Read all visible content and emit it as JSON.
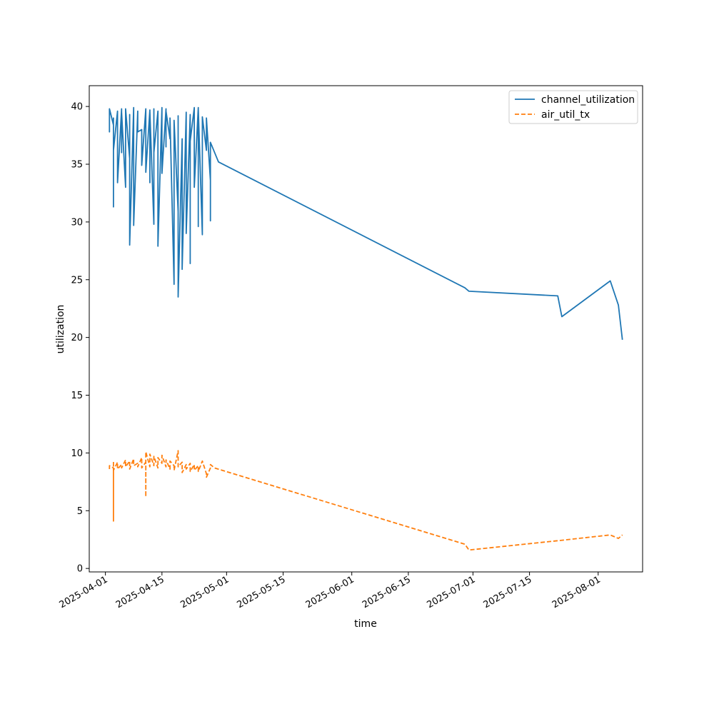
{
  "chart_data": {
    "type": "line",
    "title": "",
    "xlabel": "time",
    "ylabel": "utilization",
    "xlim": [
      "2025-03-28",
      "2025-08-12"
    ],
    "ylim": [
      -0.3,
      41.8
    ],
    "x_ticks": [
      "2025-04-01",
      "2025-04-15",
      "2025-05-01",
      "2025-05-15",
      "2025-06-01",
      "2025-06-15",
      "2025-07-01",
      "2025-07-15",
      "2025-08-01"
    ],
    "y_ticks": [
      0,
      5,
      10,
      15,
      20,
      25,
      30,
      35,
      40
    ],
    "grid": false,
    "legend": "top-right",
    "series": [
      {
        "name": "channel_utilization",
        "color": "#1f77b4",
        "style": "solid",
        "points": [
          [
            "2025-04-02",
            39.5
          ],
          [
            "2025-04-02",
            37.8
          ],
          [
            "2025-04-02",
            39.8
          ],
          [
            "2025-04-03",
            38.4
          ],
          [
            "2025-04-03",
            34.5
          ],
          [
            "2025-04-03",
            39.0
          ],
          [
            "2025-04-03",
            31.3
          ],
          [
            "2025-04-03",
            36.2
          ],
          [
            "2025-04-04",
            39.6
          ],
          [
            "2025-04-04",
            33.4
          ],
          [
            "2025-04-05",
            39.8
          ],
          [
            "2025-04-05",
            36.0
          ],
          [
            "2025-04-05",
            39.5
          ],
          [
            "2025-04-06",
            33.0
          ],
          [
            "2025-04-06",
            39.8
          ],
          [
            "2025-04-07",
            35.5
          ],
          [
            "2025-04-07",
            39.3
          ],
          [
            "2025-04-07",
            28.0
          ],
          [
            "2025-04-08",
            39.9
          ],
          [
            "2025-04-08",
            35.6
          ],
          [
            "2025-04-08",
            39.7
          ],
          [
            "2025-04-08",
            29.7
          ],
          [
            "2025-04-09",
            39.6
          ],
          [
            "2025-04-09",
            37.8
          ],
          [
            "2025-04-10",
            38.0
          ],
          [
            "2025-04-10",
            34.9
          ],
          [
            "2025-04-11",
            39.8
          ],
          [
            "2025-04-11",
            34.3
          ],
          [
            "2025-04-12",
            39.7
          ],
          [
            "2025-04-12",
            33.4
          ],
          [
            "2025-04-12",
            39.6
          ],
          [
            "2025-04-13",
            29.8
          ],
          [
            "2025-04-13",
            39.8
          ],
          [
            "2025-04-13",
            36.0
          ],
          [
            "2025-04-14",
            39.6
          ],
          [
            "2025-04-14",
            27.9
          ],
          [
            "2025-04-15",
            39.9
          ],
          [
            "2025-04-15",
            34.2
          ],
          [
            "2025-04-16",
            39.8
          ],
          [
            "2025-04-16",
            36.5
          ],
          [
            "2025-04-16",
            39.6
          ],
          [
            "2025-04-17",
            37.2
          ],
          [
            "2025-04-17",
            39.0
          ],
          [
            "2025-04-18",
            24.6
          ],
          [
            "2025-04-18",
            38.8
          ],
          [
            "2025-04-19",
            30.9
          ],
          [
            "2025-04-19",
            39.2
          ],
          [
            "2025-04-19",
            23.5
          ],
          [
            "2025-04-20",
            37.2
          ],
          [
            "2025-04-20",
            25.9
          ],
          [
            "2025-04-21",
            39.5
          ],
          [
            "2025-04-21",
            29.0
          ],
          [
            "2025-04-22",
            39.3
          ],
          [
            "2025-04-22",
            26.4
          ],
          [
            "2025-04-22",
            37.0
          ],
          [
            "2025-04-23",
            39.9
          ],
          [
            "2025-04-23",
            33.0
          ],
          [
            "2025-04-24",
            39.9
          ],
          [
            "2025-04-24",
            29.6
          ],
          [
            "2025-04-24",
            39.8
          ],
          [
            "2025-04-25",
            28.9
          ],
          [
            "2025-04-25",
            39.1
          ],
          [
            "2025-04-26",
            36.2
          ],
          [
            "2025-04-26",
            39.0
          ],
          [
            "2025-04-27",
            33.6
          ],
          [
            "2025-04-27",
            30.1
          ],
          [
            "2025-04-27",
            36.9
          ],
          [
            "2025-04-29",
            35.2
          ],
          [
            "2025-06-29",
            24.3
          ],
          [
            "2025-06-30",
            24.0
          ],
          [
            "2025-07-22",
            23.6
          ],
          [
            "2025-07-23",
            21.8
          ],
          [
            "2025-08-04",
            24.9
          ],
          [
            "2025-08-06",
            22.8
          ],
          [
            "2025-08-07",
            19.8
          ]
        ]
      },
      {
        "name": "air_util_tx",
        "color": "#ff7f0e",
        "style": "dashed",
        "points": [
          [
            "2025-04-02",
            8.6
          ],
          [
            "2025-04-02",
            8.9
          ],
          [
            "2025-04-03",
            8.7
          ],
          [
            "2025-04-03",
            4.1
          ],
          [
            "2025-04-03",
            9.3
          ],
          [
            "2025-04-03",
            8.5
          ],
          [
            "2025-04-04",
            9.2
          ],
          [
            "2025-04-04",
            8.6
          ],
          [
            "2025-04-05",
            9.0
          ],
          [
            "2025-04-05",
            8.7
          ],
          [
            "2025-04-06",
            9.4
          ],
          [
            "2025-04-06",
            8.8
          ],
          [
            "2025-04-07",
            9.3
          ],
          [
            "2025-04-07",
            8.6
          ],
          [
            "2025-04-08",
            9.5
          ],
          [
            "2025-04-08",
            8.9
          ],
          [
            "2025-04-09",
            9.1
          ],
          [
            "2025-04-09",
            8.8
          ],
          [
            "2025-04-10",
            9.6
          ],
          [
            "2025-04-10",
            8.7
          ],
          [
            "2025-04-11",
            9.2
          ],
          [
            "2025-04-11",
            6.2
          ],
          [
            "2025-04-11",
            10.1
          ],
          [
            "2025-04-12",
            8.8
          ],
          [
            "2025-04-12",
            9.9
          ],
          [
            "2025-04-13",
            8.9
          ],
          [
            "2025-04-13",
            9.7
          ],
          [
            "2025-04-14",
            8.7
          ],
          [
            "2025-04-14",
            9.6
          ],
          [
            "2025-04-15",
            9.1
          ],
          [
            "2025-04-15",
            9.8
          ],
          [
            "2025-04-16",
            8.8
          ],
          [
            "2025-04-16",
            9.4
          ],
          [
            "2025-04-17",
            8.6
          ],
          [
            "2025-04-17",
            9.3
          ],
          [
            "2025-04-18",
            8.9
          ],
          [
            "2025-04-18",
            8.5
          ],
          [
            "2025-04-19",
            10.2
          ],
          [
            "2025-04-19",
            8.8
          ],
          [
            "2025-04-20",
            9.2
          ],
          [
            "2025-04-20",
            8.3
          ],
          [
            "2025-04-21",
            9.0
          ],
          [
            "2025-04-21",
            8.6
          ],
          [
            "2025-04-22",
            9.1
          ],
          [
            "2025-04-22",
            8.4
          ],
          [
            "2025-04-23",
            9.0
          ],
          [
            "2025-04-23",
            8.5
          ],
          [
            "2025-04-24",
            8.9
          ],
          [
            "2025-04-24",
            8.4
          ],
          [
            "2025-04-25",
            9.3
          ],
          [
            "2025-04-26",
            8.2
          ],
          [
            "2025-04-26",
            7.9
          ],
          [
            "2025-04-27",
            8.7
          ],
          [
            "2025-04-27",
            9.0
          ],
          [
            "2025-04-28",
            8.7
          ],
          [
            "2025-06-29",
            2.1
          ],
          [
            "2025-06-30",
            1.6
          ],
          [
            "2025-07-22",
            2.4
          ],
          [
            "2025-08-04",
            2.9
          ],
          [
            "2025-08-06",
            2.6
          ],
          [
            "2025-08-07",
            2.9
          ]
        ]
      }
    ]
  }
}
